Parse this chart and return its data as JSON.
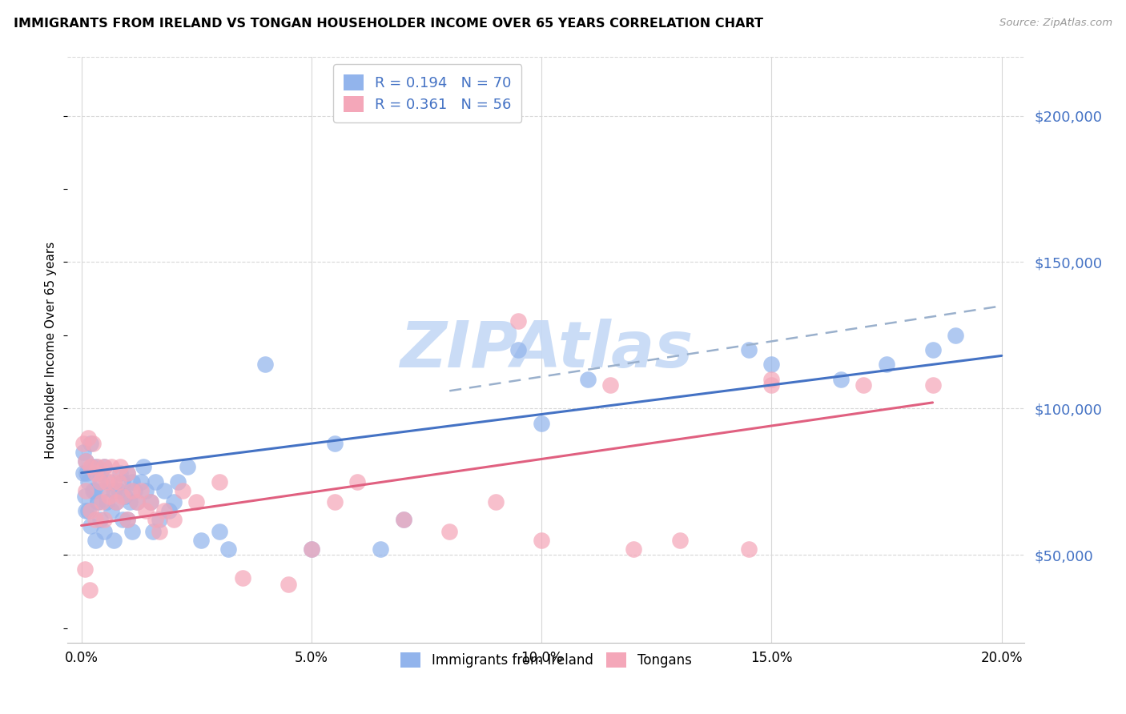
{
  "title": "IMMIGRANTS FROM IRELAND VS TONGAN HOUSEHOLDER INCOME OVER 65 YEARS CORRELATION CHART",
  "source": "Source: ZipAtlas.com",
  "ylabel": "Householder Income Over 65 years",
  "xlabel_ticks": [
    "0.0%",
    "5.0%",
    "10.0%",
    "15.0%",
    "20.0%"
  ],
  "xlabel_vals": [
    0.0,
    5.0,
    10.0,
    15.0,
    20.0
  ],
  "ytick_vals": [
    50000,
    100000,
    150000,
    200000
  ],
  "ytick_labels": [
    "$50,000",
    "$100,000",
    "$150,000",
    "$200,000"
  ],
  "ylim": [
    20000,
    220000
  ],
  "xlim": [
    -0.3,
    20.5
  ],
  "ireland_color": "#92b4ec",
  "ireland_color_dark": "#4472c4",
  "tongan_color": "#f4a7b9",
  "tongan_color_dark": "#e06080",
  "ireland_R": 0.194,
  "ireland_N": 70,
  "tongan_R": 0.361,
  "tongan_N": 56,
  "ireland_x": [
    0.05,
    0.1,
    0.1,
    0.15,
    0.2,
    0.2,
    0.25,
    0.3,
    0.3,
    0.35,
    0.4,
    0.4,
    0.45,
    0.5,
    0.5,
    0.55,
    0.6,
    0.65,
    0.7,
    0.7,
    0.75,
    0.8,
    0.85,
    0.9,
    0.9,
    0.95,
    1.0,
    1.0,
    1.05,
    1.1,
    1.1,
    1.15,
    1.2,
    1.3,
    1.35,
    1.4,
    1.5,
    1.55,
    1.6,
    1.7,
    1.8,
    1.9,
    2.0,
    2.1,
    2.3,
    2.6,
    3.0,
    3.2,
    4.0,
    5.0,
    5.5,
    6.5,
    7.0,
    9.5,
    10.0,
    11.0,
    14.5,
    15.0,
    16.5,
    17.5,
    18.5,
    19.0,
    0.05,
    0.08,
    0.12,
    0.15,
    0.22,
    0.28,
    0.35,
    0.42
  ],
  "ireland_y": [
    78000,
    82000,
    65000,
    75000,
    88000,
    60000,
    72000,
    80000,
    55000,
    68000,
    78000,
    62000,
    72000,
    80000,
    58000,
    68000,
    75000,
    65000,
    72000,
    55000,
    68000,
    72000,
    78000,
    75000,
    62000,
    70000,
    78000,
    62000,
    68000,
    75000,
    58000,
    72000,
    68000,
    75000,
    80000,
    72000,
    68000,
    58000,
    75000,
    62000,
    72000,
    65000,
    68000,
    75000,
    80000,
    55000,
    58000,
    52000,
    115000,
    52000,
    88000,
    52000,
    62000,
    120000,
    95000,
    110000,
    120000,
    115000,
    110000,
    115000,
    120000,
    125000,
    85000,
    70000,
    78000,
    65000,
    80000,
    72000,
    68000,
    75000
  ],
  "tongan_x": [
    0.05,
    0.1,
    0.1,
    0.15,
    0.2,
    0.2,
    0.25,
    0.3,
    0.3,
    0.35,
    0.4,
    0.45,
    0.5,
    0.5,
    0.55,
    0.6,
    0.65,
    0.7,
    0.75,
    0.8,
    0.85,
    0.9,
    1.0,
    1.0,
    1.1,
    1.2,
    1.3,
    1.4,
    1.5,
    1.6,
    1.7,
    1.8,
    2.0,
    2.2,
    2.5,
    3.0,
    3.5,
    4.5,
    5.0,
    5.5,
    6.0,
    7.0,
    8.0,
    9.0,
    9.5,
    10.0,
    11.5,
    12.0,
    13.0,
    14.5,
    15.0,
    15.0,
    17.0,
    18.5,
    0.08,
    0.18
  ],
  "tongan_y": [
    88000,
    82000,
    72000,
    90000,
    80000,
    65000,
    88000,
    78000,
    62000,
    80000,
    75000,
    68000,
    80000,
    62000,
    75000,
    70000,
    80000,
    75000,
    68000,
    75000,
    80000,
    70000,
    78000,
    62000,
    72000,
    68000,
    72000,
    65000,
    68000,
    62000,
    58000,
    65000,
    62000,
    72000,
    68000,
    75000,
    42000,
    40000,
    52000,
    68000,
    75000,
    62000,
    58000,
    68000,
    130000,
    55000,
    108000,
    52000,
    55000,
    52000,
    110000,
    108000,
    108000,
    108000,
    45000,
    38000
  ],
  "ireland_trend": [
    0,
    20,
    78000,
    118000
  ],
  "tongan_trend": [
    0,
    18.5,
    60000,
    102000
  ],
  "dashed_trend": [
    8.0,
    20,
    106000,
    135000
  ],
  "watermark": "ZIPAtlas",
  "watermark_color": "#c5d9f5",
  "background_color": "#ffffff",
  "grid_color": "#d8d8d8",
  "right_axis_color": "#4472c4",
  "title_fontsize": 11.5,
  "axis_label_fontsize": 11
}
